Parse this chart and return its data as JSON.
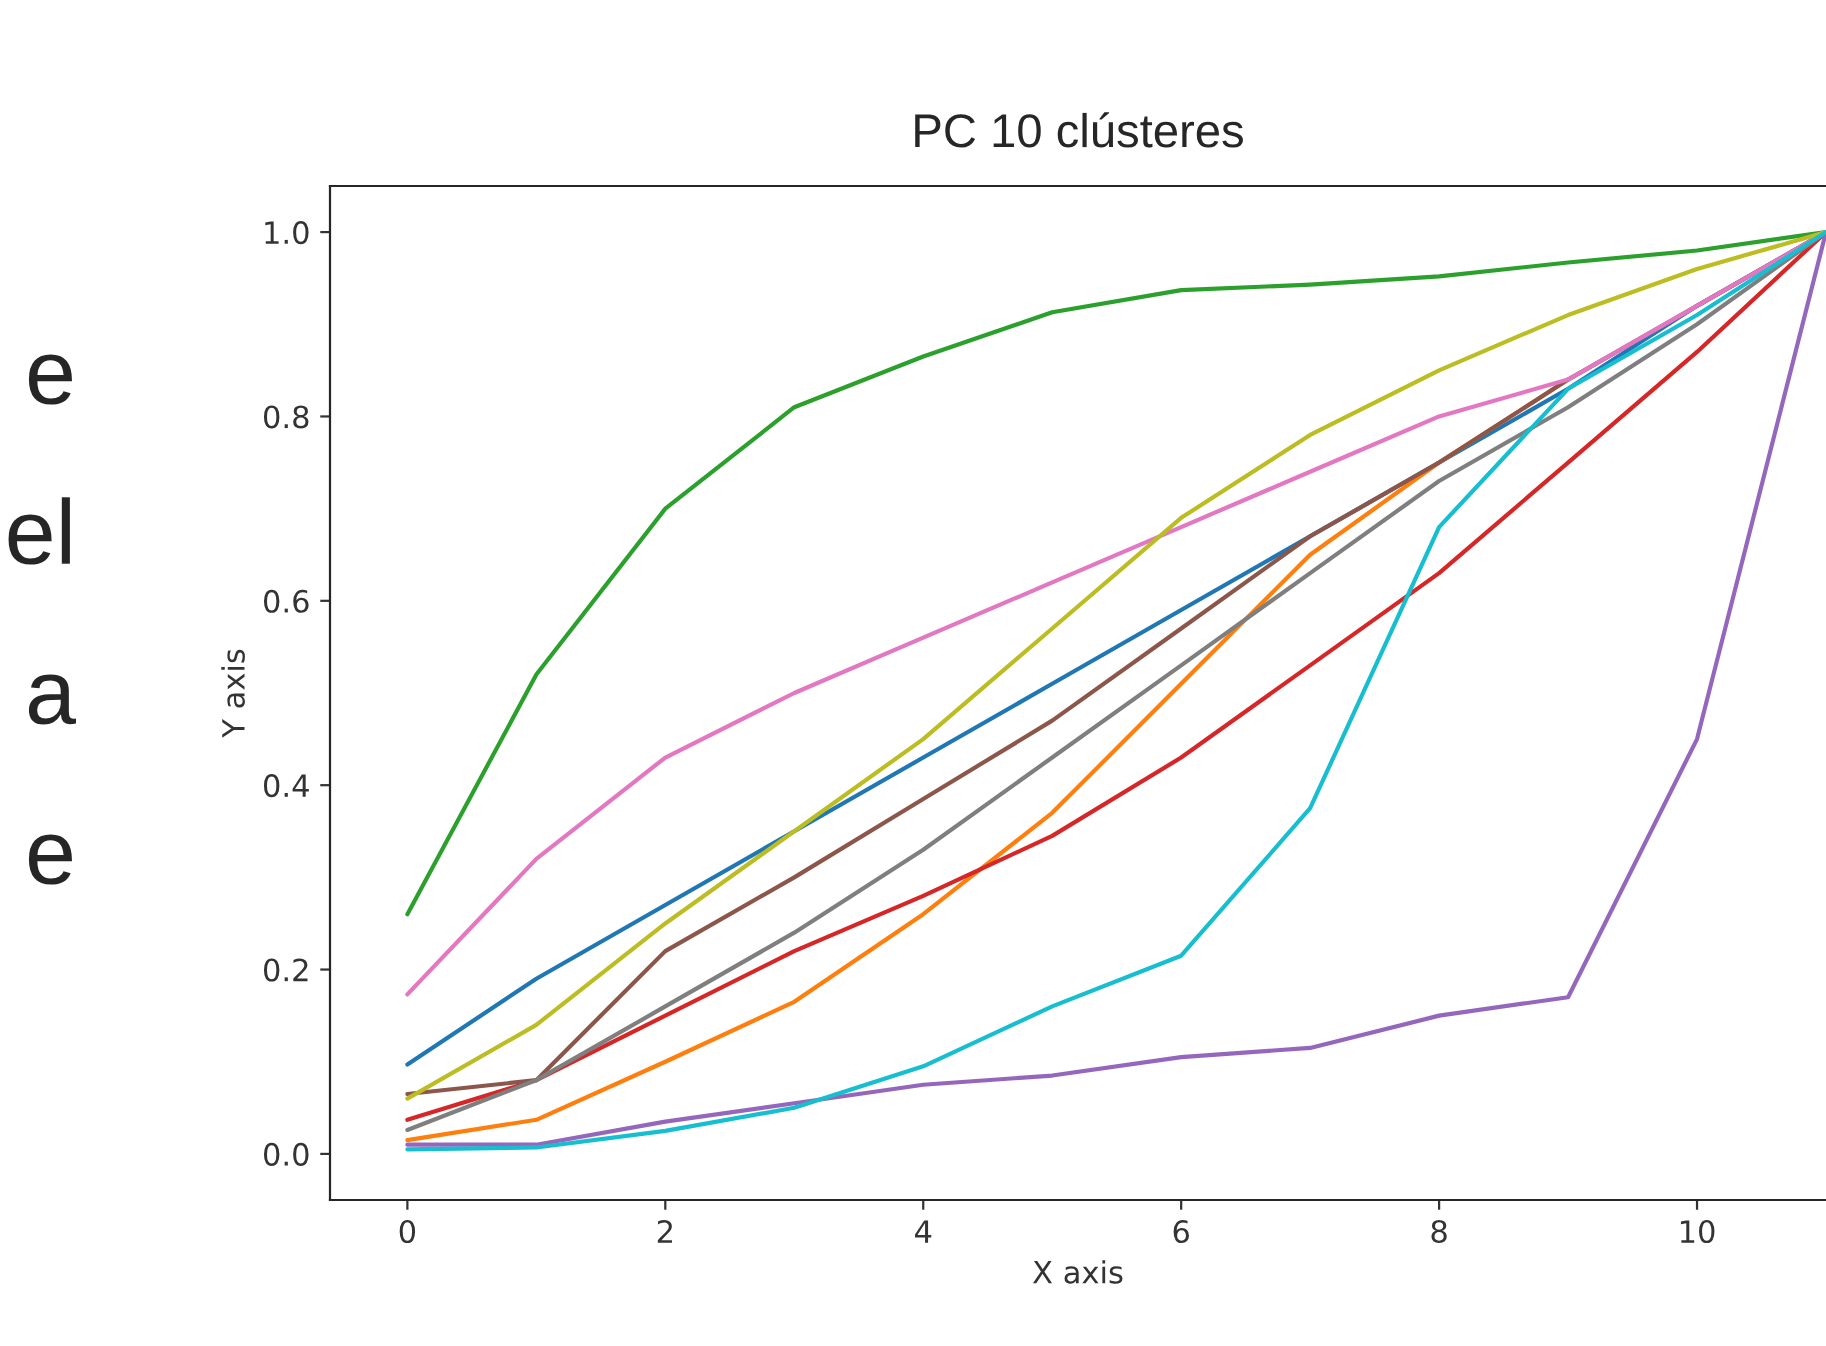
{
  "chart_data": {
    "type": "line",
    "title": "PC 10 clústeres",
    "xlabel": "X axis",
    "ylabel": "Y axis",
    "annotations": [
      "e",
      "el",
      "a",
      "e"
    ],
    "x": [
      0,
      1,
      2,
      3,
      4,
      5,
      6,
      7,
      8,
      9,
      10,
      11
    ],
    "xlim": [
      -0.6,
      11
    ],
    "xticks": [
      0,
      2,
      4,
      6,
      8,
      10
    ],
    "ylim": [
      -0.05,
      1.05
    ],
    "yticks": [
      {
        "value": 0,
        "label": "0.0"
      },
      {
        "value": 0.2,
        "label": "0.2"
      },
      {
        "value": 0.4,
        "label": "0.4"
      },
      {
        "value": 0.6,
        "label": "0.6"
      },
      {
        "value": 0.8,
        "label": "0.8"
      },
      {
        "value": 1,
        "label": "1.0"
      }
    ],
    "grid": false,
    "legend": false,
    "series": [
      {
        "color": "#1f77b4",
        "values": [
          0.097,
          0.19,
          0.27,
          0.35,
          0.43,
          0.51,
          0.59,
          0.67,
          0.75,
          0.83,
          0.92,
          1.0
        ]
      },
      {
        "color": "#ff7f0e",
        "values": [
          0.015,
          0.037,
          0.1,
          0.165,
          0.26,
          0.37,
          0.51,
          0.65,
          0.75,
          0.84,
          null,
          null
        ]
      },
      {
        "color": "#2ca02c",
        "values": [
          0.26,
          0.52,
          0.7,
          0.81,
          0.865,
          0.913,
          0.937,
          0.943,
          0.952,
          0.967,
          0.98,
          1.0
        ]
      },
      {
        "color": "#d62728",
        "values": [
          0.037,
          0.08,
          0.15,
          0.22,
          0.28,
          0.345,
          0.43,
          0.53,
          0.63,
          0.75,
          0.87,
          1.0
        ]
      },
      {
        "color": "#9467bd",
        "values": [
          0.01,
          0.01,
          0.035,
          0.055,
          0.075,
          0.085,
          0.105,
          0.115,
          0.15,
          0.17,
          0.45,
          1.0
        ]
      },
      {
        "color": "#8c564b",
        "values": [
          0.065,
          0.08,
          0.22,
          0.3,
          0.385,
          0.47,
          0.57,
          0.67,
          0.75,
          0.84,
          0.92,
          1.0
        ]
      },
      {
        "color": "#e377c2",
        "values": [
          0.173,
          0.32,
          0.43,
          0.5,
          0.56,
          0.62,
          0.68,
          0.74,
          0.8,
          0.84,
          0.92,
          1.0
        ]
      },
      {
        "color": "#7f7f7f",
        "values": [
          0.026,
          0.08,
          0.16,
          0.24,
          0.33,
          0.43,
          0.53,
          0.63,
          0.73,
          0.81,
          0.9,
          1.0
        ]
      },
      {
        "color": "#bcbd22",
        "values": [
          0.06,
          0.14,
          0.25,
          0.35,
          0.45,
          0.57,
          0.69,
          0.78,
          0.85,
          0.91,
          0.96,
          1.0
        ]
      },
      {
        "color": "#17becf",
        "values": [
          0.005,
          0.007,
          0.025,
          0.05,
          0.095,
          0.16,
          0.215,
          0.375,
          0.68,
          0.83,
          0.91,
          1.0
        ]
      }
    ]
  }
}
